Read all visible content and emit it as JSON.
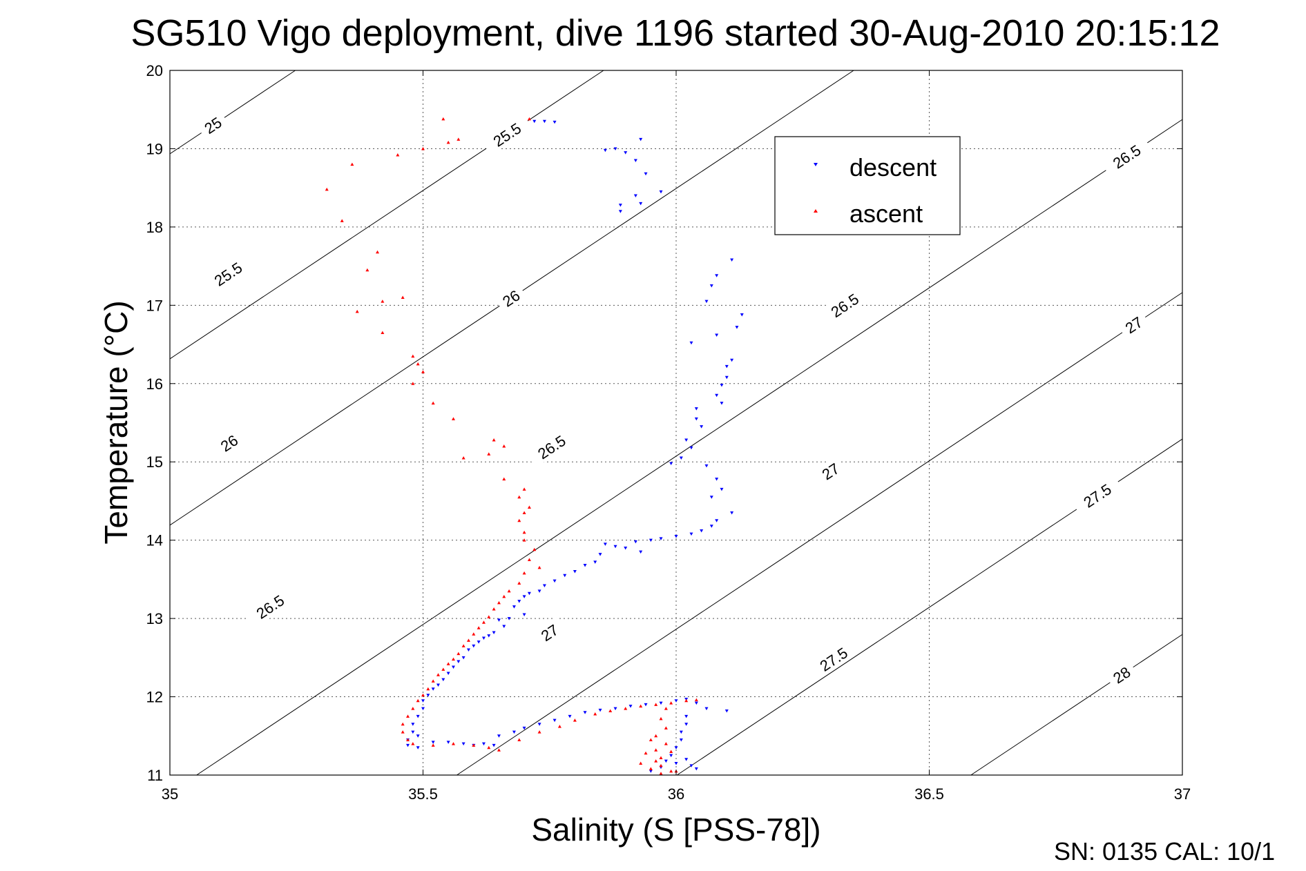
{
  "chart_data": {
    "type": "scatter",
    "title": "SG510 Vigo deployment, dive 1196 started 30-Aug-2010 20:15:12",
    "xlabel": "Salinity (S [PSS-78])",
    "ylabel": "Temperature (°C)",
    "xlim": [
      35,
      37
    ],
    "ylim": [
      11,
      20
    ],
    "x_ticks": [
      "35",
      "35.5",
      "36",
      "36.5",
      "37"
    ],
    "y_ticks": [
      "11",
      "12",
      "13",
      "14",
      "15",
      "16",
      "17",
      "18",
      "19",
      "20"
    ],
    "grid": true,
    "legend_position": "top-right",
    "footer": "SN: 0135  CAL: 10/1",
    "series": [
      {
        "name": "descent",
        "color": "#0000ff",
        "marker": "triangle-down",
        "points": [
          [
            35.72,
            19.35
          ],
          [
            35.74,
            19.35
          ],
          [
            35.76,
            19.34
          ],
          [
            35.86,
            18.98
          ],
          [
            35.88,
            19.0
          ],
          [
            35.9,
            18.95
          ],
          [
            35.92,
            18.85
          ],
          [
            35.93,
            19.12
          ],
          [
            35.94,
            18.68
          ],
          [
            35.92,
            18.4
          ],
          [
            35.93,
            18.3
          ],
          [
            35.89,
            18.28
          ],
          [
            35.89,
            18.2
          ],
          [
            35.97,
            18.45
          ],
          [
            36.11,
            17.58
          ],
          [
            36.08,
            17.38
          ],
          [
            36.07,
            17.25
          ],
          [
            36.06,
            17.05
          ],
          [
            36.13,
            16.88
          ],
          [
            36.12,
            16.72
          ],
          [
            36.08,
            16.62
          ],
          [
            36.03,
            16.52
          ],
          [
            36.11,
            16.3
          ],
          [
            36.1,
            16.22
          ],
          [
            36.1,
            16.08
          ],
          [
            36.09,
            15.98
          ],
          [
            36.08,
            15.85
          ],
          [
            36.09,
            15.75
          ],
          [
            36.04,
            15.68
          ],
          [
            36.04,
            15.55
          ],
          [
            36.05,
            15.45
          ],
          [
            36.02,
            15.28
          ],
          [
            36.03,
            15.18
          ],
          [
            36.01,
            15.05
          ],
          [
            35.99,
            14.98
          ],
          [
            36.06,
            14.95
          ],
          [
            36.08,
            14.78
          ],
          [
            36.09,
            14.65
          ],
          [
            36.07,
            14.55
          ],
          [
            36.11,
            14.35
          ],
          [
            36.08,
            14.25
          ],
          [
            36.07,
            14.18
          ],
          [
            36.05,
            14.12
          ],
          [
            36.03,
            14.08
          ],
          [
            36.0,
            14.05
          ],
          [
            35.97,
            14.02
          ],
          [
            35.95,
            14.0
          ],
          [
            35.92,
            13.98
          ],
          [
            35.88,
            13.92
          ],
          [
            35.86,
            13.95
          ],
          [
            35.9,
            13.9
          ],
          [
            35.93,
            13.85
          ],
          [
            35.85,
            13.82
          ],
          [
            35.84,
            13.72
          ],
          [
            35.82,
            13.68
          ],
          [
            35.8,
            13.6
          ],
          [
            35.78,
            13.55
          ],
          [
            35.76,
            13.48
          ],
          [
            35.74,
            13.42
          ],
          [
            35.73,
            13.35
          ],
          [
            35.71,
            13.32
          ],
          [
            35.7,
            13.28
          ],
          [
            35.69,
            13.22
          ],
          [
            35.68,
            13.15
          ],
          [
            35.7,
            13.05
          ],
          [
            35.67,
            13.0
          ],
          [
            35.65,
            12.98
          ],
          [
            35.66,
            12.9
          ],
          [
            35.64,
            12.82
          ],
          [
            35.63,
            12.78
          ],
          [
            35.62,
            12.75
          ],
          [
            35.61,
            12.7
          ],
          [
            35.6,
            12.65
          ],
          [
            35.59,
            12.6
          ],
          [
            35.58,
            12.5
          ],
          [
            35.57,
            12.45
          ],
          [
            35.56,
            12.38
          ],
          [
            35.55,
            12.3
          ],
          [
            35.54,
            12.22
          ],
          [
            35.53,
            12.15
          ],
          [
            35.52,
            12.1
          ],
          [
            35.51,
            12.02
          ],
          [
            35.5,
            11.95
          ],
          [
            35.5,
            11.85
          ],
          [
            35.49,
            11.75
          ],
          [
            35.48,
            11.65
          ],
          [
            35.48,
            11.55
          ],
          [
            35.49,
            11.5
          ],
          [
            35.47,
            11.45
          ],
          [
            35.47,
            11.38
          ],
          [
            35.49,
            11.35
          ],
          [
            35.52,
            11.42
          ],
          [
            35.55,
            11.42
          ],
          [
            35.58,
            11.4
          ],
          [
            35.6,
            11.38
          ],
          [
            35.62,
            11.4
          ],
          [
            35.64,
            11.38
          ],
          [
            35.65,
            11.5
          ],
          [
            35.68,
            11.55
          ],
          [
            35.7,
            11.6
          ],
          [
            35.73,
            11.65
          ],
          [
            35.76,
            11.7
          ],
          [
            35.79,
            11.75
          ],
          [
            35.82,
            11.8
          ],
          [
            35.85,
            11.83
          ],
          [
            35.88,
            11.85
          ],
          [
            35.91,
            11.88
          ],
          [
            35.94,
            11.9
          ],
          [
            35.97,
            11.92
          ],
          [
            36.0,
            11.95
          ],
          [
            36.02,
            11.97
          ],
          [
            36.04,
            11.92
          ],
          [
            36.06,
            11.85
          ],
          [
            36.1,
            11.82
          ],
          [
            36.02,
            11.75
          ],
          [
            36.02,
            11.65
          ],
          [
            36.01,
            11.55
          ],
          [
            36.01,
            11.45
          ],
          [
            36.0,
            11.35
          ],
          [
            35.99,
            11.25
          ],
          [
            35.98,
            11.18
          ],
          [
            36.0,
            11.15
          ],
          [
            36.02,
            11.2
          ],
          [
            36.03,
            11.12
          ],
          [
            36.04,
            11.08
          ],
          [
            35.97,
            11.1
          ],
          [
            35.95,
            11.05
          ]
        ]
      },
      {
        "name": "ascent",
        "color": "#ff0000",
        "marker": "triangle-up",
        "points": [
          [
            35.31,
            18.48
          ],
          [
            35.36,
            18.8
          ],
          [
            35.34,
            18.08
          ],
          [
            35.45,
            18.92
          ],
          [
            35.5,
            19.0
          ],
          [
            35.54,
            19.38
          ],
          [
            35.55,
            19.08
          ],
          [
            35.57,
            19.12
          ],
          [
            35.71,
            19.38
          ],
          [
            35.41,
            17.68
          ],
          [
            35.39,
            17.45
          ],
          [
            35.37,
            16.92
          ],
          [
            35.42,
            17.05
          ],
          [
            35.46,
            17.1
          ],
          [
            35.42,
            16.65
          ],
          [
            35.48,
            16.35
          ],
          [
            35.49,
            16.25
          ],
          [
            35.5,
            16.15
          ],
          [
            35.48,
            16.0
          ],
          [
            35.52,
            15.75
          ],
          [
            35.56,
            15.55
          ],
          [
            35.64,
            15.28
          ],
          [
            35.66,
            15.2
          ],
          [
            35.63,
            15.1
          ],
          [
            35.58,
            15.05
          ],
          [
            35.66,
            14.78
          ],
          [
            35.7,
            14.65
          ],
          [
            35.69,
            14.55
          ],
          [
            35.71,
            14.42
          ],
          [
            35.7,
            14.35
          ],
          [
            35.69,
            14.25
          ],
          [
            35.7,
            14.1
          ],
          [
            35.7,
            14.0
          ],
          [
            35.72,
            13.88
          ],
          [
            35.71,
            13.75
          ],
          [
            35.73,
            13.65
          ],
          [
            35.7,
            13.58
          ],
          [
            35.69,
            13.45
          ],
          [
            35.67,
            13.35
          ],
          [
            35.66,
            13.28
          ],
          [
            35.65,
            13.2
          ],
          [
            35.64,
            13.12
          ],
          [
            35.63,
            13.02
          ],
          [
            35.62,
            12.95
          ],
          [
            35.61,
            12.88
          ],
          [
            35.6,
            12.8
          ],
          [
            35.59,
            12.72
          ],
          [
            35.58,
            12.65
          ],
          [
            35.57,
            12.55
          ],
          [
            35.56,
            12.48
          ],
          [
            35.55,
            12.42
          ],
          [
            35.54,
            12.35
          ],
          [
            35.53,
            12.28
          ],
          [
            35.52,
            12.2
          ],
          [
            35.51,
            12.1
          ],
          [
            35.5,
            12.02
          ],
          [
            35.49,
            11.95
          ],
          [
            35.48,
            11.85
          ],
          [
            35.47,
            11.75
          ],
          [
            35.46,
            11.65
          ],
          [
            35.46,
            11.55
          ],
          [
            35.47,
            11.45
          ],
          [
            35.48,
            11.4
          ],
          [
            35.52,
            11.38
          ],
          [
            35.56,
            11.4
          ],
          [
            35.6,
            11.38
          ],
          [
            35.63,
            11.35
          ],
          [
            35.65,
            11.32
          ],
          [
            35.69,
            11.45
          ],
          [
            35.73,
            11.55
          ],
          [
            35.77,
            11.62
          ],
          [
            35.8,
            11.7
          ],
          [
            35.84,
            11.78
          ],
          [
            35.87,
            11.82
          ],
          [
            35.9,
            11.85
          ],
          [
            35.93,
            11.88
          ],
          [
            35.96,
            11.9
          ],
          [
            35.99,
            11.92
          ],
          [
            36.02,
            11.95
          ],
          [
            36.04,
            11.96
          ],
          [
            35.98,
            11.85
          ],
          [
            35.97,
            11.72
          ],
          [
            35.98,
            11.6
          ],
          [
            35.96,
            11.5
          ],
          [
            35.95,
            11.45
          ],
          [
            35.98,
            11.4
          ],
          [
            35.96,
            11.32
          ],
          [
            35.94,
            11.28
          ],
          [
            35.97,
            11.22
          ],
          [
            35.99,
            11.3
          ],
          [
            35.96,
            11.18
          ],
          [
            35.93,
            11.15
          ],
          [
            35.97,
            11.12
          ],
          [
            35.95,
            11.08
          ],
          [
            35.99,
            11.05
          ],
          [
            35.97,
            11.02
          ],
          [
            36.0,
            11.05
          ]
        ]
      }
    ],
    "contours": [
      {
        "value": "25",
        "labels": [
          [
            35.085,
            19.3
          ]
        ]
      },
      {
        "value": "25.5",
        "labels": [
          [
            35.666,
            19.18
          ],
          [
            35.115,
            17.4
          ]
        ]
      },
      {
        "value": "26",
        "labels": [
          [
            35.674,
            17.09
          ],
          [
            35.117,
            15.24
          ]
        ]
      },
      {
        "value": "26.5",
        "labels": [
          [
            36.89,
            18.9
          ],
          [
            36.333,
            17.0
          ],
          [
            35.754,
            15.19
          ],
          [
            35.198,
            13.15
          ]
        ]
      },
      {
        "value": "27",
        "labels": [
          [
            36.904,
            16.75
          ],
          [
            36.305,
            14.88
          ],
          [
            35.75,
            12.82
          ]
        ]
      },
      {
        "value": "27.5",
        "labels": [
          [
            36.832,
            14.57
          ],
          [
            36.311,
            12.48
          ]
        ]
      },
      {
        "value": "28",
        "labels": [
          [
            36.88,
            12.28
          ]
        ]
      }
    ]
  },
  "legend": {
    "descent_label": "descent",
    "ascent_label": "ascent"
  }
}
